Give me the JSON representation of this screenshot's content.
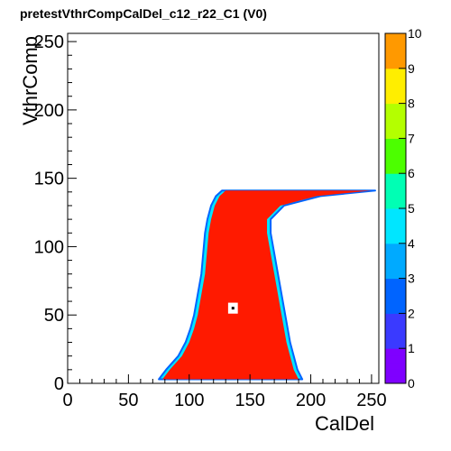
{
  "chart_data": {
    "type": "heatmap",
    "title": "pretestVthrCompCalDel_c12_r22_C1 (V0)",
    "xlabel": "CalDel",
    "ylabel": "VthrComp",
    "xlim": [
      0,
      256
    ],
    "ylim": [
      0,
      256
    ],
    "zlim": [
      0,
      10
    ],
    "x_ticks": [
      0,
      50,
      100,
      150,
      200,
      250
    ],
    "y_ticks": [
      0,
      50,
      100,
      150,
      200,
      250
    ],
    "colorbar_ticks": [
      0,
      1,
      2,
      3,
      4,
      5,
      6,
      7,
      8,
      9,
      10
    ],
    "grid": false,
    "colorbar": "right",
    "dominant_value": 10,
    "region": {
      "description_rows": [
        {
          "y": 3,
          "x_min": 78,
          "x_max": 190
        },
        {
          "y": 10,
          "x_min": 84,
          "x_max": 186
        },
        {
          "y": 20,
          "x_min": 94,
          "x_max": 183
        },
        {
          "y": 30,
          "x_min": 100,
          "x_max": 180
        },
        {
          "y": 40,
          "x_min": 104,
          "x_max": 178
        },
        {
          "y": 50,
          "x_min": 107,
          "x_max": 176
        },
        {
          "y": 60,
          "x_min": 109,
          "x_max": 174
        },
        {
          "y": 70,
          "x_min": 111,
          "x_max": 172
        },
        {
          "y": 80,
          "x_min": 113,
          "x_max": 170
        },
        {
          "y": 90,
          "x_min": 114,
          "x_max": 168
        },
        {
          "y": 100,
          "x_min": 115,
          "x_max": 166
        },
        {
          "y": 110,
          "x_min": 116,
          "x_max": 164
        },
        {
          "y": 120,
          "x_min": 118,
          "x_max": 164
        },
        {
          "y": 130,
          "x_min": 121,
          "x_max": 175
        },
        {
          "y": 137,
          "x_min": 125,
          "x_max": 205
        },
        {
          "y": 141,
          "x_min": 130,
          "x_max": 250
        }
      ],
      "hole": {
        "x": 136,
        "y": 55,
        "size": 8
      }
    }
  }
}
